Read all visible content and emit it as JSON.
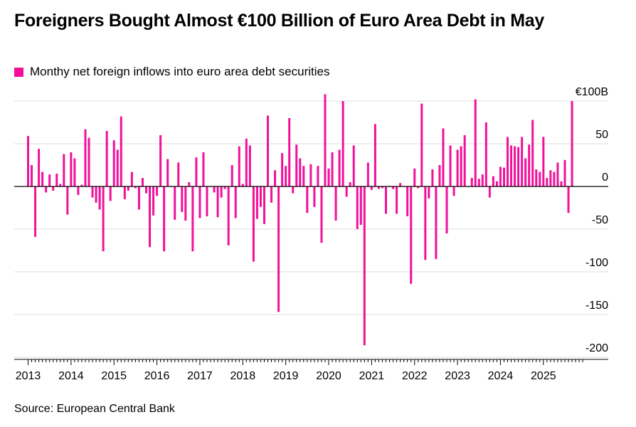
{
  "title": "Foreigners Bought Almost €100 Billion of Euro Area Debt in May",
  "legend_label": "Monthy net foreign inflows into euro area debt securities",
  "source": "Source: European Central Bank",
  "colors": {
    "bar": "#f2109a",
    "grid": "#dcdcdc",
    "zero": "#000000"
  },
  "chart_data": {
    "type": "bar",
    "title": "Foreigners Bought Almost €100 Billion of Euro Area Debt in May",
    "series_name": "Monthy net foreign inflows into euro area debt securities",
    "start": "2013-01",
    "ylim": [
      -200,
      100
    ],
    "y_ticks": [
      100,
      50,
      0,
      -50,
      -100,
      -150,
      -200
    ],
    "y_tick_labels": [
      "€100B",
      "50",
      "0",
      "-50",
      "-100",
      "-150",
      "-200"
    ],
    "x_tick_labels": [
      "2013",
      "2014",
      "2015",
      "2016",
      "2017",
      "2018",
      "2019",
      "2020",
      "2021",
      "2022",
      "2023",
      "2024",
      "2025"
    ],
    "values": [
      59,
      25,
      -59,
      44,
      17,
      -7,
      14,
      -5,
      15,
      3,
      38,
      -33,
      40,
      33,
      -10,
      2,
      67,
      57,
      -13,
      -19,
      -27,
      -76,
      65,
      -17,
      54,
      43,
      82,
      -15,
      -5,
      17,
      -2,
      -27,
      10,
      -8,
      -71,
      -34,
      -11,
      60,
      -76,
      32,
      0,
      -39,
      28,
      -30,
      -40,
      5,
      -76,
      34,
      -37,
      40,
      -35,
      0,
      -7,
      -36,
      -13,
      -3,
      -69,
      25,
      -37,
      47,
      3,
      56,
      48,
      -88,
      -38,
      -24,
      -44,
      83,
      -19,
      19,
      -147,
      39,
      24,
      80,
      -8,
      49,
      33,
      24,
      -31,
      26,
      -24,
      24,
      -66,
      108,
      21,
      40,
      -40,
      43,
      100,
      -12,
      5,
      48,
      -50,
      -45,
      -186,
      28,
      -4,
      73,
      -3,
      -2,
      -32,
      0,
      -3,
      -32,
      4,
      0,
      -35,
      -114,
      21,
      -2,
      97,
      -86,
      -14,
      20,
      -85,
      25,
      68,
      -55,
      48,
      -11,
      43,
      47,
      60,
      0,
      10,
      102,
      9,
      14,
      75,
      -13,
      12,
      6,
      23,
      22,
      58,
      48,
      47,
      46,
      58,
      33,
      49,
      78,
      20,
      17,
      58,
      10,
      19,
      17,
      28,
      6,
      31,
      -31,
      100
    ]
  }
}
